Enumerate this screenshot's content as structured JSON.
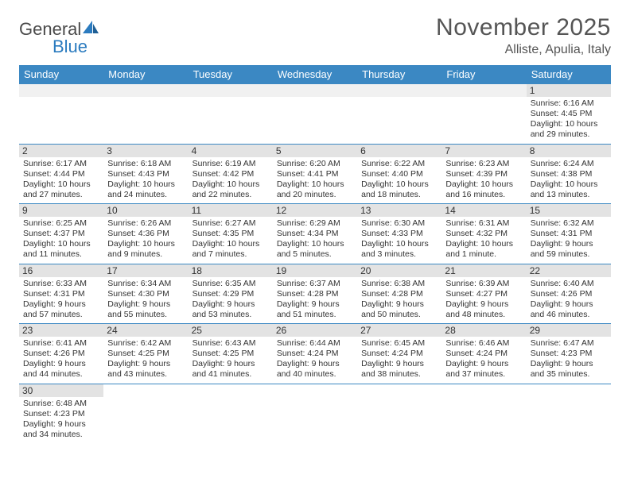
{
  "logo": {
    "word1": "General",
    "word2": "Blue"
  },
  "title": "November 2025",
  "location": "Alliste, Apulia, Italy",
  "colors": {
    "header_bg": "#3b88c3",
    "header_text": "#ffffff",
    "daynum_bg": "#e3e3e3",
    "rule": "#3b88c3",
    "body_text": "#333333",
    "title_text": "#555555",
    "logo_gray": "#4a4a4a",
    "logo_blue": "#2b7bbf",
    "background": "#ffffff"
  },
  "typography": {
    "title_fontsize": 30,
    "location_fontsize": 16,
    "weekday_fontsize": 13,
    "daynum_fontsize": 12,
    "cell_fontsize": 10.5,
    "logo_fontsize": 22
  },
  "calendar": {
    "type": "table",
    "columns": [
      "Sunday",
      "Monday",
      "Tuesday",
      "Wednesday",
      "Thursday",
      "Friday",
      "Saturday"
    ],
    "weeks": [
      [
        null,
        null,
        null,
        null,
        null,
        null,
        {
          "n": "1",
          "sunrise": "6:16 AM",
          "sunset": "4:45 PM",
          "daylight": "10 hours and 29 minutes."
        }
      ],
      [
        {
          "n": "2",
          "sunrise": "6:17 AM",
          "sunset": "4:44 PM",
          "daylight": "10 hours and 27 minutes."
        },
        {
          "n": "3",
          "sunrise": "6:18 AM",
          "sunset": "4:43 PM",
          "daylight": "10 hours and 24 minutes."
        },
        {
          "n": "4",
          "sunrise": "6:19 AM",
          "sunset": "4:42 PM",
          "daylight": "10 hours and 22 minutes."
        },
        {
          "n": "5",
          "sunrise": "6:20 AM",
          "sunset": "4:41 PM",
          "daylight": "10 hours and 20 minutes."
        },
        {
          "n": "6",
          "sunrise": "6:22 AM",
          "sunset": "4:40 PM",
          "daylight": "10 hours and 18 minutes."
        },
        {
          "n": "7",
          "sunrise": "6:23 AM",
          "sunset": "4:39 PM",
          "daylight": "10 hours and 16 minutes."
        },
        {
          "n": "8",
          "sunrise": "6:24 AM",
          "sunset": "4:38 PM",
          "daylight": "10 hours and 13 minutes."
        }
      ],
      [
        {
          "n": "9",
          "sunrise": "6:25 AM",
          "sunset": "4:37 PM",
          "daylight": "10 hours and 11 minutes."
        },
        {
          "n": "10",
          "sunrise": "6:26 AM",
          "sunset": "4:36 PM",
          "daylight": "10 hours and 9 minutes."
        },
        {
          "n": "11",
          "sunrise": "6:27 AM",
          "sunset": "4:35 PM",
          "daylight": "10 hours and 7 minutes."
        },
        {
          "n": "12",
          "sunrise": "6:29 AM",
          "sunset": "4:34 PM",
          "daylight": "10 hours and 5 minutes."
        },
        {
          "n": "13",
          "sunrise": "6:30 AM",
          "sunset": "4:33 PM",
          "daylight": "10 hours and 3 minutes."
        },
        {
          "n": "14",
          "sunrise": "6:31 AM",
          "sunset": "4:32 PM",
          "daylight": "10 hours and 1 minute."
        },
        {
          "n": "15",
          "sunrise": "6:32 AM",
          "sunset": "4:31 PM",
          "daylight": "9 hours and 59 minutes."
        }
      ],
      [
        {
          "n": "16",
          "sunrise": "6:33 AM",
          "sunset": "4:31 PM",
          "daylight": "9 hours and 57 minutes."
        },
        {
          "n": "17",
          "sunrise": "6:34 AM",
          "sunset": "4:30 PM",
          "daylight": "9 hours and 55 minutes."
        },
        {
          "n": "18",
          "sunrise": "6:35 AM",
          "sunset": "4:29 PM",
          "daylight": "9 hours and 53 minutes."
        },
        {
          "n": "19",
          "sunrise": "6:37 AM",
          "sunset": "4:28 PM",
          "daylight": "9 hours and 51 minutes."
        },
        {
          "n": "20",
          "sunrise": "6:38 AM",
          "sunset": "4:28 PM",
          "daylight": "9 hours and 50 minutes."
        },
        {
          "n": "21",
          "sunrise": "6:39 AM",
          "sunset": "4:27 PM",
          "daylight": "9 hours and 48 minutes."
        },
        {
          "n": "22",
          "sunrise": "6:40 AM",
          "sunset": "4:26 PM",
          "daylight": "9 hours and 46 minutes."
        }
      ],
      [
        {
          "n": "23",
          "sunrise": "6:41 AM",
          "sunset": "4:26 PM",
          "daylight": "9 hours and 44 minutes."
        },
        {
          "n": "24",
          "sunrise": "6:42 AM",
          "sunset": "4:25 PM",
          "daylight": "9 hours and 43 minutes."
        },
        {
          "n": "25",
          "sunrise": "6:43 AM",
          "sunset": "4:25 PM",
          "daylight": "9 hours and 41 minutes."
        },
        {
          "n": "26",
          "sunrise": "6:44 AM",
          "sunset": "4:24 PM",
          "daylight": "9 hours and 40 minutes."
        },
        {
          "n": "27",
          "sunrise": "6:45 AM",
          "sunset": "4:24 PM",
          "daylight": "9 hours and 38 minutes."
        },
        {
          "n": "28",
          "sunrise": "6:46 AM",
          "sunset": "4:24 PM",
          "daylight": "9 hours and 37 minutes."
        },
        {
          "n": "29",
          "sunrise": "6:47 AM",
          "sunset": "4:23 PM",
          "daylight": "9 hours and 35 minutes."
        }
      ],
      [
        {
          "n": "30",
          "sunrise": "6:48 AM",
          "sunset": "4:23 PM",
          "daylight": "9 hours and 34 minutes."
        },
        null,
        null,
        null,
        null,
        null,
        null
      ]
    ]
  },
  "labels": {
    "sunrise": "Sunrise:",
    "sunset": "Sunset:",
    "daylight": "Daylight:"
  }
}
